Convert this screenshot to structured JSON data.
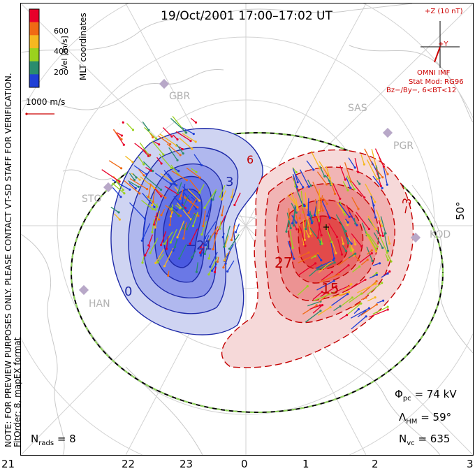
{
  "title": "19/Oct/2001  17:00–17:02 UT",
  "side_note": {
    "line1": "NOTE: FOR PREVIEW PURPOSES ONLY. PLEASE CONTACT VT-SD STAFF FOR VERIFICATION.",
    "line2": "FitOrder: 8, mapEX format"
  },
  "colorbar": {
    "coord_label": "MLT coordinates",
    "vel_label": "Vel [m/s]",
    "ticks": [
      "600",
      "400",
      "200"
    ],
    "colors": [
      "#e8002a",
      "#f06a14",
      "#f5b820",
      "#9bd21e",
      "#2a8c6e",
      "#1f3fd6"
    ]
  },
  "vector_scale": {
    "label": "1000 m/s"
  },
  "imf": {
    "bz_label": "+Z (10 nT)",
    "by_label": "+Y",
    "source": "OMNI IMF",
    "stat_mod": "Stat Mod: RG96",
    "condition": "Bz−/By−, 6<BT<12"
  },
  "latitude_label": "50°",
  "mlt_ticks": [
    "21",
    "22",
    "23",
    "0",
    "1",
    "2",
    "3"
  ],
  "stations": [
    "GBR",
    "SAS",
    "PGR",
    "STO",
    "KOD",
    "HAN"
  ],
  "contour_labels": {
    "neg": [
      "−21",
      "3",
      "0"
    ],
    "pos": [
      "27",
      "15",
      "6",
      "−3"
    ]
  },
  "stats": {
    "phi_pc": "74 kV",
    "phi_label": "Φ",
    "phi_sub": "pc",
    "lambda_hm": "59°",
    "lambda_label": "Λ",
    "lambda_sub": "HM",
    "n_vc": "635",
    "n_vc_label": "N",
    "n_vc_sub": "vc",
    "n_rads": "8",
    "n_rads_label": "N",
    "n_rads_sub": "rads"
  }
}
